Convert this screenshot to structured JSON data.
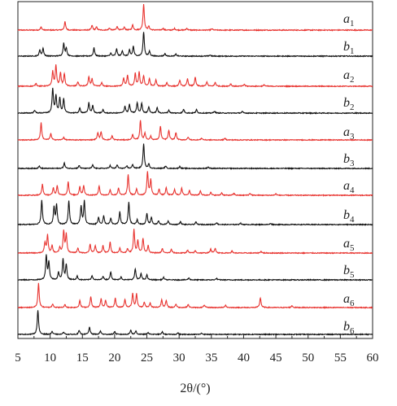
{
  "chart_data": {
    "type": "line",
    "title": "",
    "xlabel": "2θ/(°)",
    "ylabel": "",
    "xlim": [
      5,
      60
    ],
    "xticks": [
      "5",
      "10",
      "15",
      "20",
      "25",
      "30",
      "35",
      "40",
      "45",
      "50",
      "55",
      "60"
    ],
    "grid": false,
    "colors": {
      "a": "#e8332f",
      "b": "#111111"
    },
    "series": [
      {
        "name": "a",
        "sub": "1",
        "color": "#e8332f",
        "peaks": [
          [
            8.6,
            0.12
          ],
          [
            12.3,
            0.32
          ],
          [
            16.5,
            0.18
          ],
          [
            17.2,
            0.12
          ],
          [
            19.2,
            0.08
          ],
          [
            20.4,
            0.14
          ],
          [
            21.5,
            0.11
          ],
          [
            22.8,
            0.2
          ],
          [
            24.5,
            1.0
          ],
          [
            25.3,
            0.14
          ],
          [
            27.5,
            0.07
          ],
          [
            29.3,
            0.06
          ],
          [
            31.2,
            0.07
          ],
          [
            35.1,
            0.05
          ]
        ]
      },
      {
        "name": "b",
        "sub": "1",
        "color": "#111111",
        "peaks": [
          [
            8.4,
            0.25
          ],
          [
            8.9,
            0.32
          ],
          [
            12.1,
            0.52
          ],
          [
            12.5,
            0.33
          ],
          [
            16.8,
            0.34
          ],
          [
            19.4,
            0.12
          ],
          [
            20.3,
            0.3
          ],
          [
            21.2,
            0.22
          ],
          [
            22.3,
            0.24
          ],
          [
            22.9,
            0.4
          ],
          [
            24.5,
            1.0
          ],
          [
            25.4,
            0.2
          ],
          [
            27.8,
            0.1
          ],
          [
            29.5,
            0.08
          ],
          [
            34.8,
            0.05
          ]
        ]
      },
      {
        "name": "a",
        "sub": "2",
        "color": "#e8332f",
        "peaks": [
          [
            7.8,
            0.12
          ],
          [
            10.4,
            0.6
          ],
          [
            10.9,
            0.85
          ],
          [
            11.6,
            0.55
          ],
          [
            12.2,
            0.5
          ],
          [
            14.3,
            0.18
          ],
          [
            16.0,
            0.38
          ],
          [
            16.5,
            0.3
          ],
          [
            18.0,
            0.14
          ],
          [
            21.4,
            0.33
          ],
          [
            22.0,
            0.45
          ],
          [
            23.2,
            0.52
          ],
          [
            23.8,
            0.56
          ],
          [
            24.5,
            0.42
          ],
          [
            25.4,
            0.3
          ],
          [
            26.4,
            0.25
          ],
          [
            28.1,
            0.15
          ],
          [
            30.1,
            0.25
          ],
          [
            31.3,
            0.3
          ],
          [
            32.5,
            0.36
          ],
          [
            34.3,
            0.18
          ],
          [
            35.6,
            0.16
          ],
          [
            38.0,
            0.1
          ],
          [
            40.1,
            0.08
          ],
          [
            43.2,
            0.06
          ]
        ]
      },
      {
        "name": "b",
        "sub": "2",
        "color": "#111111",
        "peaks": [
          [
            7.6,
            0.12
          ],
          [
            10.4,
            1.0
          ],
          [
            10.9,
            0.7
          ],
          [
            11.5,
            0.62
          ],
          [
            12.1,
            0.58
          ],
          [
            14.6,
            0.2
          ],
          [
            16.0,
            0.42
          ],
          [
            16.6,
            0.3
          ],
          [
            18.2,
            0.13
          ],
          [
            21.6,
            0.28
          ],
          [
            22.3,
            0.35
          ],
          [
            23.5,
            0.42
          ],
          [
            24.2,
            0.4
          ],
          [
            25.3,
            0.26
          ],
          [
            26.6,
            0.22
          ],
          [
            28.4,
            0.12
          ],
          [
            30.7,
            0.16
          ],
          [
            32.7,
            0.14
          ],
          [
            35.5,
            0.08
          ],
          [
            39.8,
            0.06
          ]
        ]
      },
      {
        "name": "a",
        "sub": "3",
        "color": "#e8332f",
        "peaks": [
          [
            8.6,
            0.75
          ],
          [
            10.1,
            0.28
          ],
          [
            12.1,
            0.12
          ],
          [
            17.4,
            0.32
          ],
          [
            17.9,
            0.35
          ],
          [
            19.6,
            0.18
          ],
          [
            22.8,
            0.24
          ],
          [
            24.0,
            0.85
          ],
          [
            24.7,
            0.3
          ],
          [
            25.6,
            0.16
          ],
          [
            27.1,
            0.6
          ],
          [
            28.4,
            0.42
          ],
          [
            29.5,
            0.32
          ],
          [
            31.4,
            0.12
          ],
          [
            33.5,
            0.08
          ],
          [
            37.1,
            0.07
          ]
        ]
      },
      {
        "name": "b",
        "sub": "3",
        "color": "#111111",
        "peaks": [
          [
            8.3,
            0.1
          ],
          [
            12.2,
            0.22
          ],
          [
            14.5,
            0.12
          ],
          [
            16.6,
            0.14
          ],
          [
            19.3,
            0.12
          ],
          [
            20.4,
            0.14
          ],
          [
            21.9,
            0.1
          ],
          [
            22.8,
            0.16
          ],
          [
            24.5,
            1.0
          ],
          [
            25.3,
            0.18
          ],
          [
            27.9,
            0.1
          ],
          [
            30.1,
            0.08
          ],
          [
            34.5,
            0.06
          ]
        ]
      },
      {
        "name": "a",
        "sub": "4",
        "color": "#e8332f",
        "peaks": [
          [
            8.8,
            0.45
          ],
          [
            10.5,
            0.3
          ],
          [
            11.1,
            0.38
          ],
          [
            12.8,
            0.55
          ],
          [
            14.6,
            0.35
          ],
          [
            15.2,
            0.4
          ],
          [
            17.6,
            0.38
          ],
          [
            19.3,
            0.22
          ],
          [
            20.6,
            0.3
          ],
          [
            22.1,
            0.85
          ],
          [
            23.4,
            0.25
          ],
          [
            25.1,
            0.95
          ],
          [
            25.6,
            0.62
          ],
          [
            26.9,
            0.25
          ],
          [
            28.0,
            0.3
          ],
          [
            29.3,
            0.24
          ],
          [
            30.4,
            0.28
          ],
          [
            31.6,
            0.2
          ],
          [
            33.3,
            0.18
          ],
          [
            34.9,
            0.12
          ],
          [
            36.6,
            0.1
          ],
          [
            38.5,
            0.08
          ],
          [
            41.0,
            0.08
          ],
          [
            45.0,
            0.06
          ]
        ]
      },
      {
        "name": "b",
        "sub": "4",
        "color": "#111111",
        "peaks": [
          [
            8.7,
            1.0
          ],
          [
            10.6,
            0.7
          ],
          [
            11.0,
            0.8
          ],
          [
            12.9,
            0.98
          ],
          [
            14.8,
            0.75
          ],
          [
            15.3,
            0.95
          ],
          [
            17.5,
            0.3
          ],
          [
            18.3,
            0.35
          ],
          [
            19.4,
            0.25
          ],
          [
            20.8,
            0.52
          ],
          [
            22.2,
            0.92
          ],
          [
            23.5,
            0.2
          ],
          [
            25.0,
            0.45
          ],
          [
            25.7,
            0.3
          ],
          [
            26.8,
            0.15
          ],
          [
            28.3,
            0.15
          ],
          [
            30.2,
            0.12
          ],
          [
            32.6,
            0.1
          ],
          [
            35.8,
            0.08
          ],
          [
            39.5,
            0.06
          ],
          [
            44.2,
            0.05
          ]
        ]
      },
      {
        "name": "a",
        "sub": "5",
        "color": "#e8332f",
        "peaks": [
          [
            9.2,
            0.42
          ],
          [
            9.6,
            0.72
          ],
          [
            10.3,
            0.3
          ],
          [
            11.5,
            0.22
          ],
          [
            12.1,
            0.9
          ],
          [
            12.5,
            0.75
          ],
          [
            14.3,
            0.2
          ],
          [
            16.2,
            0.35
          ],
          [
            17.0,
            0.3
          ],
          [
            18.2,
            0.3
          ],
          [
            19.3,
            0.44
          ],
          [
            20.8,
            0.2
          ],
          [
            22.0,
            0.18
          ],
          [
            23.0,
            0.95
          ],
          [
            23.6,
            0.5
          ],
          [
            24.4,
            0.6
          ],
          [
            25.2,
            0.3
          ],
          [
            27.4,
            0.18
          ],
          [
            28.8,
            0.15
          ],
          [
            31.3,
            0.12
          ],
          [
            32.5,
            0.1
          ],
          [
            34.9,
            0.16
          ],
          [
            35.6,
            0.2
          ],
          [
            38.2,
            0.08
          ],
          [
            42.7,
            0.07
          ]
        ]
      },
      {
        "name": "b",
        "sub": "5",
        "color": "#111111",
        "peaks": [
          [
            9.4,
            1.0
          ],
          [
            9.8,
            0.72
          ],
          [
            11.3,
            0.3
          ],
          [
            12.0,
            0.85
          ],
          [
            12.5,
            0.62
          ],
          [
            14.2,
            0.15
          ],
          [
            16.5,
            0.18
          ],
          [
            18.2,
            0.15
          ],
          [
            19.4,
            0.33
          ],
          [
            21.0,
            0.12
          ],
          [
            23.2,
            0.45
          ],
          [
            24.1,
            0.25
          ],
          [
            25.0,
            0.2
          ],
          [
            27.6,
            0.1
          ],
          [
            31.5,
            0.08
          ],
          [
            35.8,
            0.06
          ]
        ]
      },
      {
        "name": "a",
        "sub": "6",
        "color": "#e8332f",
        "peaks": [
          [
            8.2,
            1.0
          ],
          [
            10.4,
            0.15
          ],
          [
            12.3,
            0.12
          ],
          [
            14.6,
            0.28
          ],
          [
            16.3,
            0.45
          ],
          [
            17.9,
            0.35
          ],
          [
            18.6,
            0.3
          ],
          [
            20.1,
            0.38
          ],
          [
            21.6,
            0.32
          ],
          [
            22.8,
            0.58
          ],
          [
            23.4,
            0.55
          ],
          [
            24.6,
            0.22
          ],
          [
            25.5,
            0.18
          ],
          [
            27.3,
            0.32
          ],
          [
            28.0,
            0.28
          ],
          [
            29.5,
            0.14
          ],
          [
            31.4,
            0.12
          ],
          [
            33.9,
            0.1
          ],
          [
            37.2,
            0.1
          ],
          [
            42.6,
            0.4
          ],
          [
            47.5,
            0.08
          ]
        ]
      },
      {
        "name": "b",
        "sub": "6",
        "color": "#111111",
        "peaks": [
          [
            8.1,
            1.0
          ],
          [
            10.3,
            0.12
          ],
          [
            12.1,
            0.1
          ],
          [
            14.5,
            0.16
          ],
          [
            16.1,
            0.3
          ],
          [
            17.8,
            0.14
          ],
          [
            20.0,
            0.12
          ],
          [
            22.5,
            0.18
          ],
          [
            23.3,
            0.14
          ],
          [
            25.2,
            0.08
          ],
          [
            27.4,
            0.1
          ],
          [
            29.8,
            0.06
          ],
          [
            33.5,
            0.05
          ]
        ]
      }
    ]
  }
}
